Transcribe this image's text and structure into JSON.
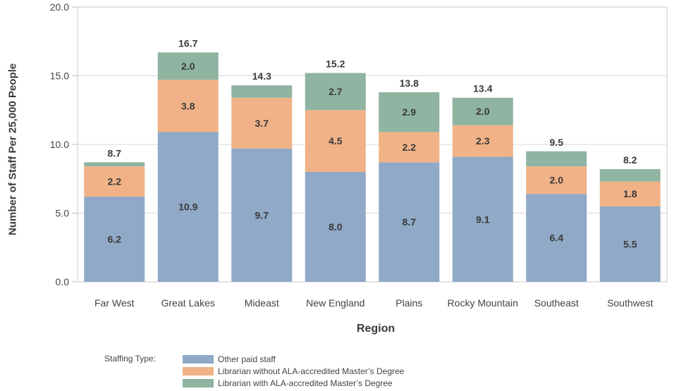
{
  "chart_data": {
    "type": "bar",
    "stacked": true,
    "categories": [
      "Far West",
      "Great Lakes",
      "Mideast",
      "New England",
      "Plains",
      "Rocky Mountain",
      "Southeast",
      "Southwest"
    ],
    "series": [
      {
        "name": "Other paid staff",
        "color": "#8fa9c7",
        "values": [
          6.2,
          10.9,
          9.7,
          8.0,
          8.7,
          9.1,
          6.4,
          5.5
        ],
        "labels": [
          "6.2",
          "10.9",
          "9.7",
          "8.0",
          "8.7",
          "9.1",
          "6.4",
          "5.5"
        ]
      },
      {
        "name": "Librarian without ALA-accredited Master’s Degree",
        "color": "#f0b286",
        "values": [
          2.2,
          3.8,
          3.7,
          4.5,
          2.2,
          2.3,
          2.0,
          1.8
        ],
        "labels": [
          "2.2",
          "3.8",
          "3.7",
          "4.5",
          "2.2",
          "2.3",
          "2.0",
          "1.8"
        ]
      },
      {
        "name": "Librarian with ALA-accredited Master’s Degree",
        "color": "#8fb4a1",
        "values": [
          0.3,
          2.0,
          0.9,
          2.7,
          2.9,
          2.0,
          1.1,
          0.9
        ],
        "labels": [
          "",
          "2.0",
          "",
          "2.7",
          "2.9",
          "2.0",
          "",
          ""
        ]
      }
    ],
    "totals": [
      "8.7",
      "16.7",
      "14.3",
      "15.2",
      "13.8",
      "13.4",
      "9.5",
      "8.2"
    ],
    "ylabel": "Number of Staff Per 25,000 People",
    "xlabel": "Region",
    "ylim": [
      0,
      20
    ],
    "yticks": [
      "0.0",
      "5.0",
      "10.0",
      "15.0",
      "20.0"
    ],
    "grid": true,
    "legend_title": "Staffing Type:",
    "legend_position": "bottom"
  }
}
